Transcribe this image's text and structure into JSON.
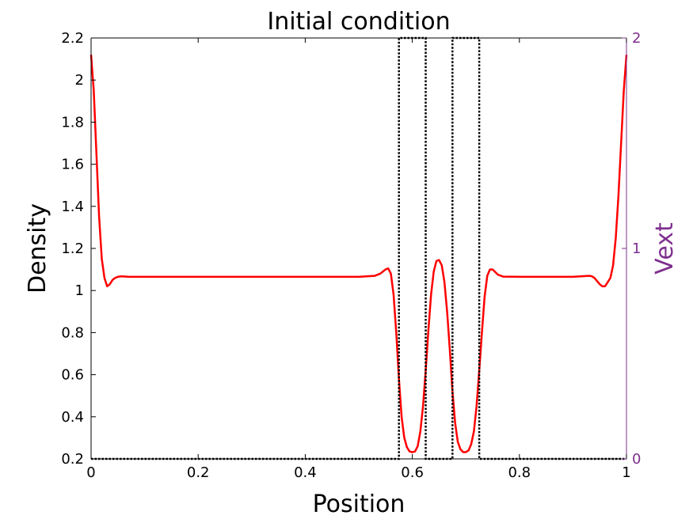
{
  "chart_data": {
    "type": "line",
    "title": "Initial condition",
    "xlabel": "Position",
    "ylabel_left": "Density",
    "ylabel_right": "Vext",
    "xlim": [
      0,
      1
    ],
    "ylim_left": [
      0.2,
      2.2
    ],
    "ylim_right": [
      0,
      2
    ],
    "x_ticks": [
      "0",
      "0.2",
      "0.4",
      "0.6",
      "0.8",
      "1"
    ],
    "y_ticks_left": [
      "0.2",
      "0.4",
      "0.6",
      "0.8",
      "1",
      "1.2",
      "1.4",
      "1.6",
      "1.8",
      "2",
      "2.2"
    ],
    "y_ticks_right": [
      "0",
      "1",
      "2"
    ],
    "grid": false,
    "colors": {
      "density": "#ff0000",
      "vext": "#000000",
      "right_axis": "#7e2f8e",
      "axes": "#000000"
    },
    "series": [
      {
        "axis": "left",
        "style": "solid",
        "x": [
          0,
          0.005,
          0.01,
          0.015,
          0.02,
          0.025,
          0.03,
          0.035,
          0.04,
          0.045,
          0.05,
          0.055,
          0.06,
          0.065,
          0.07,
          0.08,
          0.1,
          0.2,
          0.3,
          0.4,
          0.5,
          0.53,
          0.54,
          0.55,
          0.555,
          0.56,
          0.565,
          0.57,
          0.575,
          0.58,
          0.585,
          0.59,
          0.595,
          0.6,
          0.605,
          0.61,
          0.615,
          0.62,
          0.625,
          0.63,
          0.635,
          0.64,
          0.645,
          0.65,
          0.655,
          0.66,
          0.665,
          0.67,
          0.675,
          0.68,
          0.685,
          0.69,
          0.695,
          0.7,
          0.705,
          0.71,
          0.715,
          0.72,
          0.725,
          0.73,
          0.735,
          0.74,
          0.745,
          0.75,
          0.76,
          0.77,
          0.8,
          0.9,
          0.93,
          0.935,
          0.94,
          0.945,
          0.95,
          0.955,
          0.96,
          0.965,
          0.97,
          0.975,
          0.98,
          0.985,
          0.99,
          0.995,
          1
        ],
        "y": [
          2.12,
          1.95,
          1.65,
          1.35,
          1.15,
          1.06,
          1.02,
          1.03,
          1.05,
          1.06,
          1.065,
          1.067,
          1.067,
          1.066,
          1.065,
          1.065,
          1.065,
          1.065,
          1.065,
          1.065,
          1.065,
          1.07,
          1.08,
          1.1,
          1.105,
          1.08,
          0.98,
          0.8,
          0.58,
          0.4,
          0.3,
          0.255,
          0.235,
          0.232,
          0.235,
          0.26,
          0.33,
          0.45,
          0.62,
          0.81,
          0.98,
          1.09,
          1.14,
          1.145,
          1.12,
          1.04,
          0.9,
          0.72,
          0.52,
          0.37,
          0.28,
          0.245,
          0.232,
          0.232,
          0.24,
          0.27,
          0.33,
          0.45,
          0.62,
          0.8,
          0.97,
          1.07,
          1.1,
          1.1,
          1.075,
          1.066,
          1.065,
          1.065,
          1.07,
          1.068,
          1.06,
          1.045,
          1.03,
          1.02,
          1.02,
          1.04,
          1.06,
          1.12,
          1.25,
          1.45,
          1.7,
          1.95,
          2.12
        ]
      },
      {
        "axis": "right",
        "style": "dotted",
        "x": [
          0,
          0.575,
          0.575,
          0.625,
          0.625,
          0.675,
          0.675,
          0.725,
          0.725,
          1
        ],
        "y": [
          0,
          0,
          2,
          2,
          0,
          0,
          2,
          2,
          0,
          0
        ]
      }
    ]
  }
}
